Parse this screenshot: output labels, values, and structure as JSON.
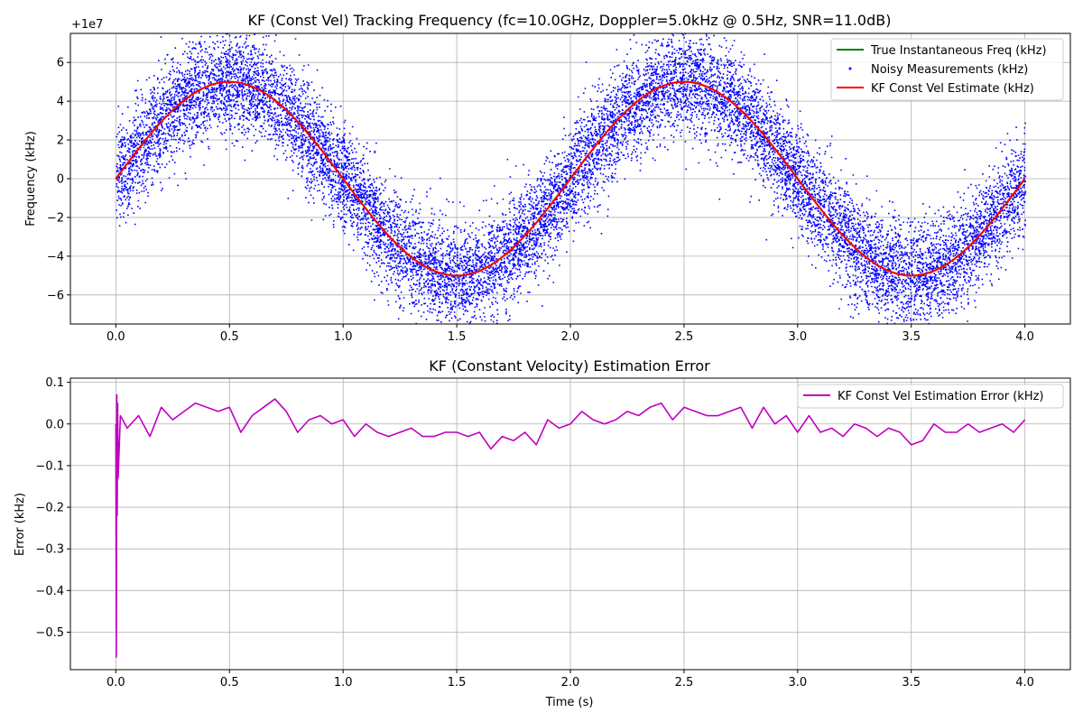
{
  "chart_data": [
    {
      "type": "line",
      "title": "KF (Const Vel) Tracking Frequency (fc=10.0GHz, Doppler=5.0kHz @ 0.5Hz, SNR=11.0dB)",
      "xlabel": "",
      "ylabel": "Frequency (kHz)",
      "y_offset_text": "+1e7",
      "xlim": [
        -0.2,
        4.2
      ],
      "ylim": [
        -7.5,
        7.5
      ],
      "x_ticks": [
        0.0,
        0.5,
        1.0,
        1.5,
        2.0,
        2.5,
        3.0,
        3.5,
        4.0
      ],
      "x_tick_labels": [
        "0.0",
        "0.5",
        "1.0",
        "1.5",
        "2.0",
        "2.5",
        "3.0",
        "3.5",
        "4.0"
      ],
      "y_ticks": [
        -6,
        -4,
        -2,
        0,
        2,
        4,
        6
      ],
      "y_tick_labels": [
        "−6",
        "−4",
        "−2",
        "0",
        "2",
        "4",
        "6"
      ],
      "grid": true,
      "legend_position": "top-right",
      "series": [
        {
          "name": "True Instantaneous Freq (kHz)",
          "kind": "line",
          "color": "#008000",
          "amplitude": 5.0,
          "frequency_hz": 0.5,
          "t_start": 0.0,
          "t_end": 4.0
        },
        {
          "name": "Noisy Measurements (kHz)",
          "kind": "scatter",
          "color": "#0000ff",
          "amplitude": 5.0,
          "frequency_hz": 0.5,
          "noise_std": 1.3,
          "t_start": 0.0,
          "t_end": 4.0
        },
        {
          "name": "KF Const Vel Estimate (kHz)",
          "kind": "line",
          "color": "#ff0000",
          "amplitude": 5.0,
          "frequency_hz": 0.5,
          "t_start": 0.0,
          "t_end": 4.0
        }
      ]
    },
    {
      "type": "line",
      "title": "KF (Constant Velocity) Estimation Error",
      "xlabel": "Time (s)",
      "ylabel": "Error (kHz)",
      "xlim": [
        -0.2,
        4.2
      ],
      "ylim": [
        -0.59,
        0.11
      ],
      "x_ticks": [
        0.0,
        0.5,
        1.0,
        1.5,
        2.0,
        2.5,
        3.0,
        3.5,
        4.0
      ],
      "x_tick_labels": [
        "0.0",
        "0.5",
        "1.0",
        "1.5",
        "2.0",
        "2.5",
        "3.0",
        "3.5",
        "4.0"
      ],
      "y_ticks": [
        -0.5,
        -0.4,
        -0.3,
        -0.2,
        -0.1,
        0.0,
        0.1
      ],
      "y_tick_labels": [
        "−0.5",
        "−0.4",
        "−0.3",
        "−0.2",
        "−0.1",
        "0.0",
        "0.1"
      ],
      "grid": true,
      "legend_position": "top-right",
      "series": [
        {
          "name": "KF Const Vel Estimation Error (kHz)",
          "color": "#bf00bf",
          "x": [
            0.0,
            0.002,
            0.004,
            0.006,
            0.008,
            0.01,
            0.02,
            0.05,
            0.1,
            0.15,
            0.2,
            0.25,
            0.3,
            0.35,
            0.4,
            0.45,
            0.5,
            0.55,
            0.6,
            0.65,
            0.7,
            0.75,
            0.8,
            0.85,
            0.9,
            0.95,
            1.0,
            1.05,
            1.1,
            1.15,
            1.2,
            1.25,
            1.3,
            1.35,
            1.4,
            1.45,
            1.5,
            1.55,
            1.6,
            1.65,
            1.7,
            1.75,
            1.8,
            1.85,
            1.9,
            1.95,
            2.0,
            2.05,
            2.1,
            2.15,
            2.2,
            2.25,
            2.3,
            2.35,
            2.4,
            2.45,
            2.5,
            2.55,
            2.6,
            2.65,
            2.7,
            2.75,
            2.8,
            2.85,
            2.9,
            2.95,
            3.0,
            3.05,
            3.1,
            3.15,
            3.2,
            3.25,
            3.3,
            3.35,
            3.4,
            3.45,
            3.5,
            3.55,
            3.6,
            3.65,
            3.7,
            3.75,
            3.8,
            3.85,
            3.9,
            3.95,
            4.0
          ],
          "values": [
            0.0,
            -0.56,
            0.07,
            -0.22,
            0.05,
            -0.13,
            0.02,
            -0.01,
            0.02,
            -0.03,
            0.04,
            0.01,
            0.03,
            0.05,
            0.04,
            0.03,
            0.04,
            -0.02,
            0.02,
            0.04,
            0.06,
            0.03,
            -0.02,
            0.01,
            0.02,
            0.0,
            0.01,
            -0.03,
            0.0,
            -0.02,
            -0.03,
            -0.02,
            -0.01,
            -0.03,
            -0.03,
            -0.02,
            -0.02,
            -0.03,
            -0.02,
            -0.06,
            -0.03,
            -0.04,
            -0.02,
            -0.05,
            0.01,
            -0.01,
            0.0,
            0.03,
            0.01,
            0.0,
            0.01,
            0.03,
            0.02,
            0.04,
            0.05,
            0.01,
            0.04,
            0.03,
            0.02,
            0.02,
            0.03,
            0.04,
            -0.01,
            0.04,
            0.0,
            0.02,
            -0.02,
            0.02,
            -0.02,
            -0.01,
            -0.03,
            0.0,
            -0.01,
            -0.03,
            -0.01,
            -0.02,
            -0.05,
            -0.04,
            0.0,
            -0.02,
            -0.02,
            0.0,
            -0.02,
            -0.01,
            0.0,
            -0.02,
            0.01
          ]
        }
      ]
    }
  ]
}
